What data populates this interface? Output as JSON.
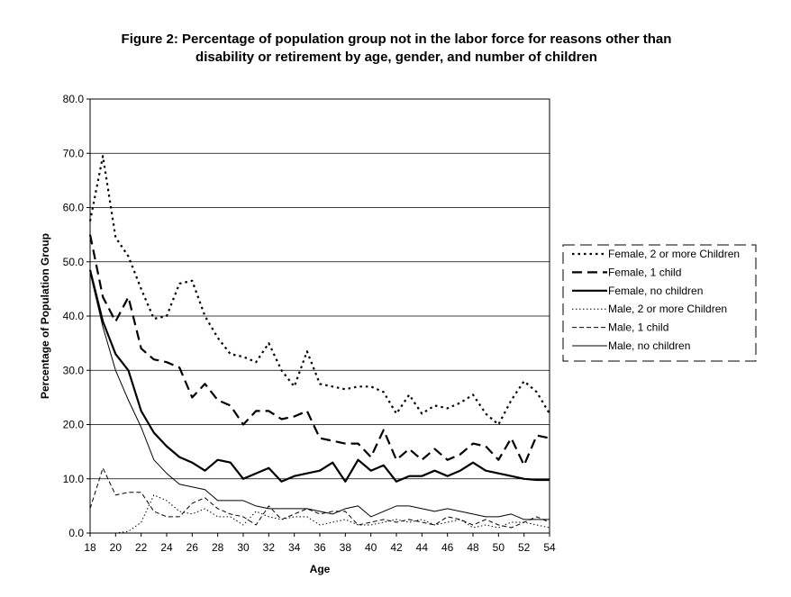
{
  "chart_data": {
    "type": "line",
    "title_line1": "Figure 2: Percentage of population group not in the labor force for reasons other than",
    "title_line2": "disability or retirement by age, gender, and number of children",
    "xlabel": "Age",
    "ylabel": "Percentage of Population Group",
    "xlim": [
      18,
      54
    ],
    "ylim": [
      0,
      80
    ],
    "x_ticks": [
      18,
      20,
      22,
      24,
      26,
      28,
      30,
      32,
      34,
      36,
      38,
      40,
      42,
      44,
      46,
      48,
      50,
      52,
      54
    ],
    "y_ticks": [
      "0.0",
      "10.0",
      "20.0",
      "30.0",
      "40.0",
      "50.0",
      "60.0",
      "70.0",
      "80.0"
    ],
    "grid": "horizontal",
    "legend_position": "right",
    "x": [
      18,
      19,
      20,
      21,
      22,
      23,
      24,
      25,
      26,
      27,
      28,
      29,
      30,
      31,
      32,
      33,
      34,
      35,
      36,
      37,
      38,
      39,
      40,
      41,
      42,
      43,
      44,
      45,
      46,
      47,
      48,
      49,
      50,
      51,
      52,
      53,
      54
    ],
    "series": [
      {
        "name": "Female, 2 or more Children",
        "style": "dotted-heavy",
        "values": [
          57.5,
          69.5,
          54.5,
          51,
          45,
          39.5,
          40,
          46,
          46.5,
          40,
          36,
          33,
          32.5,
          31.5,
          35,
          30,
          27,
          33.5,
          27.5,
          27,
          26.5,
          27,
          27,
          26,
          22,
          25.5,
          22,
          23.5,
          23,
          24,
          25.5,
          22,
          20,
          24.5,
          28,
          26,
          22
        ]
      },
      {
        "name": "Female, 1 child",
        "style": "long-dash",
        "values": [
          55,
          43.5,
          39,
          43.5,
          34,
          32,
          31.5,
          30.5,
          25,
          27.5,
          24.5,
          23.5,
          20,
          22.5,
          22.5,
          21,
          21.5,
          22.5,
          17.5,
          17,
          16.5,
          16.5,
          14,
          19,
          13.5,
          15.5,
          13.5,
          15.5,
          13.5,
          14.5,
          16.5,
          16,
          13.5,
          17.5,
          12.5,
          18,
          17.5
        ]
      },
      {
        "name": "Female, no children",
        "style": "solid-heavy",
        "values": [
          48.5,
          39,
          33,
          30,
          22.5,
          18.5,
          16,
          14,
          13,
          11.5,
          13.5,
          13,
          10,
          11,
          12,
          9.5,
          10.5,
          11,
          11.5,
          13,
          9.5,
          13.5,
          11.5,
          12.5,
          9.5,
          10.5,
          10.5,
          11.5,
          10.5,
          11.5,
          13,
          11.5,
          11,
          10.5,
          10,
          9.8,
          9.8
        ]
      },
      {
        "name": "Male, 2 or more Children",
        "style": "dotted-fine",
        "values": [
          0,
          0,
          0,
          0.3,
          2,
          7,
          6,
          4,
          3.5,
          4.5,
          3,
          3,
          1.5,
          4,
          3,
          2.5,
          3,
          3,
          1.5,
          2,
          2.5,
          1.5,
          1.5,
          2,
          2.5,
          2,
          2.5,
          1.5,
          2,
          2.5,
          1,
          1.5,
          1,
          2,
          2,
          1.5,
          1
        ]
      },
      {
        "name": "Male, 1 child",
        "style": "short-dash",
        "values": [
          4.5,
          12,
          7,
          7.5,
          7.5,
          4,
          3,
          3,
          5.5,
          6.5,
          4.5,
          3.5,
          3,
          1.5,
          5,
          2.5,
          3.5,
          4.5,
          3.5,
          4,
          4,
          1.5,
          2,
          2.5,
          2,
          2.5,
          2,
          1.5,
          3,
          2.5,
          1.5,
          2.5,
          1.5,
          1,
          2,
          3,
          2
        ]
      },
      {
        "name": "Male, no children",
        "style": "solid-thin",
        "values": [
          48,
          38,
          30,
          24.5,
          19.5,
          13.5,
          11,
          9,
          8.5,
          8,
          6,
          6,
          6,
          5,
          4.5,
          4.5,
          4.5,
          4.5,
          4,
          3.5,
          4.5,
          5,
          3,
          4,
          5,
          5,
          4.5,
          4,
          4.5,
          4,
          3.5,
          3,
          3,
          3.5,
          2.5,
          2.5,
          2.5
        ]
      }
    ]
  }
}
